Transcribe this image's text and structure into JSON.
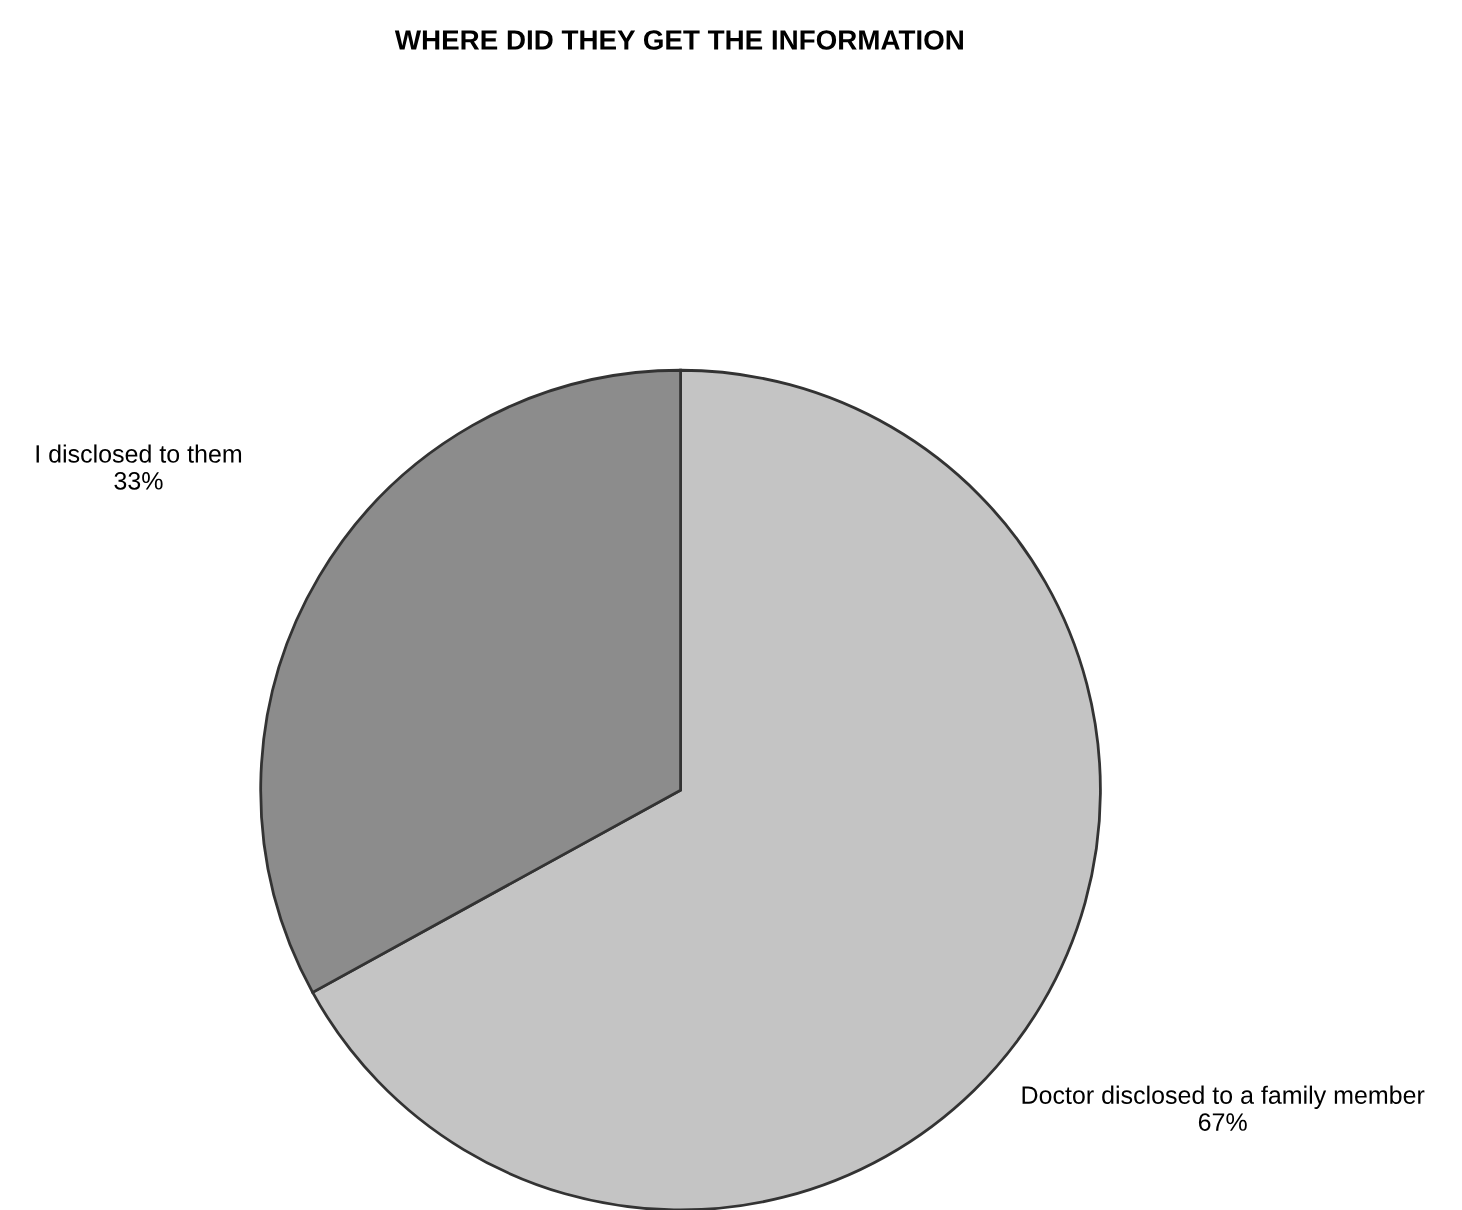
{
  "chart_data": {
    "type": "pie",
    "title": "WHERE DID THEY GET THE INFORMATION",
    "categories": [
      "Doctor disclosed to a family member",
      "I disclosed to them"
    ],
    "values": [
      67,
      33
    ],
    "value_labels": [
      "67%",
      "33%"
    ],
    "colors": [
      "#c4c4c4",
      "#8c8c8c"
    ]
  }
}
